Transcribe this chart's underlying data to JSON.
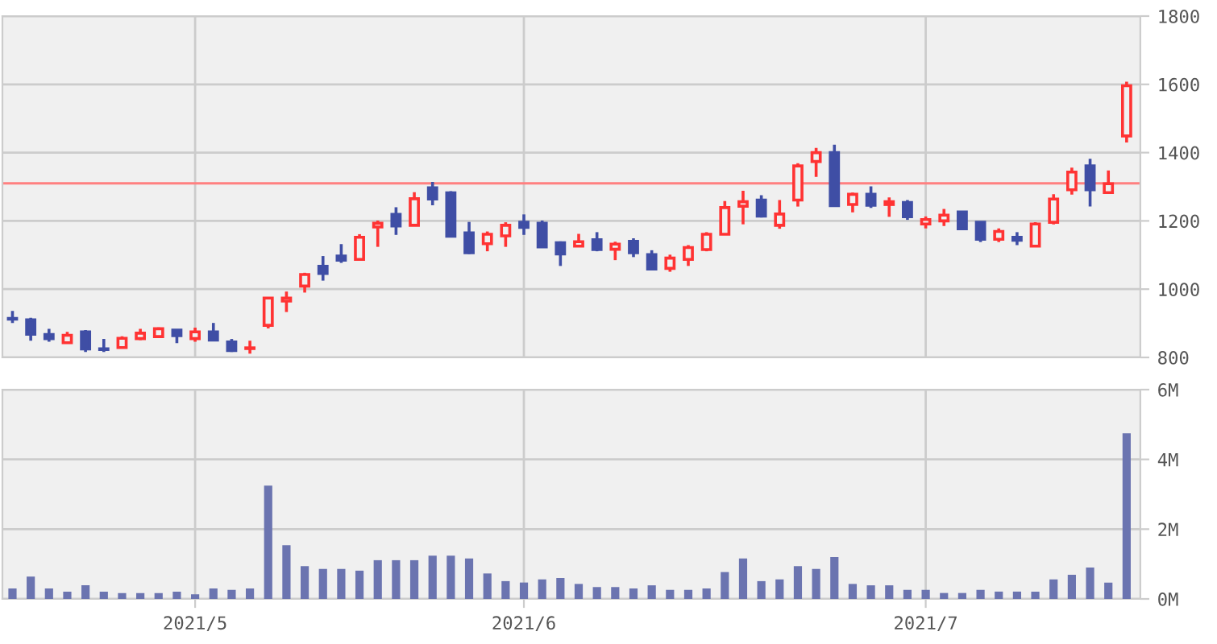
{
  "chart_data": [
    {
      "type": "candlestick",
      "tick_labels": "y",
      "grid": true,
      "categories": [
        null,
        null,
        null,
        null,
        null,
        null,
        null,
        null,
        null,
        null,
        "2021/5",
        null,
        null,
        null,
        null,
        null,
        null,
        null,
        null,
        null,
        null,
        null,
        null,
        null,
        null,
        null,
        null,
        null,
        "2021/6",
        null,
        null,
        null,
        null,
        null,
        null,
        null,
        null,
        null,
        null,
        null,
        null,
        null,
        null,
        null,
        null,
        null,
        null,
        null,
        null,
        null,
        "2021/7",
        null,
        null,
        null,
        null,
        null,
        null,
        null,
        null,
        null,
        null,
        null
      ],
      "ohlc": [
        [
          914,
          936,
          901,
          912
        ],
        [
          910,
          916,
          849,
          868
        ],
        [
          867,
          884,
          846,
          855
        ],
        [
          843,
          875,
          843,
          865
        ],
        [
          875,
          880,
          816,
          825
        ],
        [
          825,
          854,
          816,
          823
        ],
        [
          829,
          862,
          826,
          856
        ],
        [
          855,
          884,
          851,
          871
        ],
        [
          861,
          888,
          859,
          884
        ],
        [
          880,
          880,
          842,
          864
        ],
        [
          855,
          887,
          846,
          875
        ],
        [
          875,
          901,
          851,
          851
        ],
        [
          845,
          854,
          816,
          820
        ],
        [
          826,
          849,
          811,
          828
        ],
        [
          894,
          974,
          885,
          974
        ],
        [
          965,
          993,
          933,
          974
        ],
        [
          1009,
          1048,
          990,
          1043
        ],
        [
          1067,
          1097,
          1025,
          1046
        ],
        [
          1097,
          1132,
          1077,
          1085
        ],
        [
          1087,
          1161,
          1087,
          1152
        ],
        [
          1182,
          1201,
          1124,
          1193
        ],
        [
          1219,
          1240,
          1159,
          1185
        ],
        [
          1187,
          1284,
          1187,
          1265
        ],
        [
          1297,
          1314,
          1246,
          1264
        ],
        [
          1282,
          1287,
          1155,
          1155
        ],
        [
          1165,
          1197,
          1103,
          1107
        ],
        [
          1133,
          1169,
          1111,
          1161
        ],
        [
          1156,
          1196,
          1124,
          1187
        ],
        [
          1196,
          1219,
          1159,
          1181
        ],
        [
          1193,
          1201,
          1124,
          1124
        ],
        [
          1136,
          1140,
          1068,
          1103
        ],
        [
          1126,
          1162,
          1126,
          1139
        ],
        [
          1145,
          1167,
          1111,
          1116
        ],
        [
          1117,
          1139,
          1085,
          1132
        ],
        [
          1140,
          1149,
          1094,
          1107
        ],
        [
          1101,
          1114,
          1059,
          1059
        ],
        [
          1061,
          1101,
          1051,
          1091
        ],
        [
          1087,
          1129,
          1068,
          1122
        ],
        [
          1116,
          1167,
          1111,
          1161
        ],
        [
          1161,
          1258,
          1161,
          1239
        ],
        [
          1243,
          1288,
          1190,
          1256
        ],
        [
          1261,
          1275,
          1210,
          1214
        ],
        [
          1187,
          1261,
          1177,
          1220
        ],
        [
          1261,
          1369,
          1242,
          1361
        ],
        [
          1374,
          1414,
          1329,
          1400
        ],
        [
          1400,
          1423,
          1242,
          1245
        ],
        [
          1248,
          1283,
          1225,
          1278
        ],
        [
          1278,
          1301,
          1238,
          1246
        ],
        [
          1248,
          1269,
          1212,
          1256
        ],
        [
          1254,
          1261,
          1203,
          1212
        ],
        [
          1191,
          1213,
          1178,
          1204
        ],
        [
          1200,
          1235,
          1185,
          1217
        ],
        [
          1226,
          1229,
          1177,
          1177
        ],
        [
          1196,
          1196,
          1138,
          1146
        ],
        [
          1146,
          1178,
          1138,
          1169
        ],
        [
          1152,
          1167,
          1129,
          1143
        ],
        [
          1126,
          1196,
          1126,
          1191
        ],
        [
          1196,
          1278,
          1190,
          1264
        ],
        [
          1291,
          1356,
          1277,
          1343
        ],
        [
          1361,
          1382,
          1242,
          1291
        ],
        [
          1283,
          1348,
          1283,
          1309
        ],
        [
          1449,
          1608,
          1430,
          1596
        ]
      ],
      "colors": [
        "#3f4ea5",
        "#3f4ea5",
        "#3f4ea5",
        "#ff3333",
        "#3f4ea5",
        "#3f4ea5",
        "#ff3333",
        "#ff3333",
        "#ff3333",
        "#3f4ea5",
        "#ff3333",
        "#3f4ea5",
        "#3f4ea5",
        "#ff3333",
        "#ff3333",
        "#ff3333",
        "#ff3333",
        "#3f4ea5",
        "#3f4ea5",
        "#ff3333",
        "#ff3333",
        "#3f4ea5",
        "#ff3333",
        "#3f4ea5",
        "#3f4ea5",
        "#3f4ea5",
        "#ff3333",
        "#ff3333",
        "#3f4ea5",
        "#3f4ea5",
        "#3f4ea5",
        "#ff3333",
        "#3f4ea5",
        "#ff3333",
        "#3f4ea5",
        "#3f4ea5",
        "#ff3333",
        "#ff3333",
        "#ff3333",
        "#ff3333",
        "#ff3333",
        "#3f4ea5",
        "#ff3333",
        "#ff3333",
        "#ff3333",
        "#3f4ea5",
        "#ff3333",
        "#3f4ea5",
        "#ff3333",
        "#3f4ea5",
        "#ff3333",
        "#ff3333",
        "#3f4ea5",
        "#3f4ea5",
        "#ff3333",
        "#3f4ea5",
        "#ff3333",
        "#ff3333",
        "#ff3333",
        "#3f4ea5",
        "#ff3333",
        "#ff3333"
      ],
      "ylim": [
        800,
        1800
      ],
      "yticks": [
        800,
        1000,
        1200,
        1400,
        1600,
        1800
      ],
      "ref_lines": [
        {
          "axis": "y",
          "value": 1310,
          "color": "#ff8080"
        }
      ]
    },
    {
      "type": "bar",
      "grid": true,
      "color": "#6b74b0",
      "categories": [
        null,
        null,
        null,
        null,
        null,
        null,
        null,
        null,
        null,
        null,
        "2021/5",
        null,
        null,
        null,
        null,
        null,
        null,
        null,
        null,
        null,
        null,
        null,
        null,
        null,
        null,
        null,
        null,
        null,
        "2021/6",
        null,
        null,
        null,
        null,
        null,
        null,
        null,
        null,
        null,
        null,
        null,
        null,
        null,
        null,
        null,
        null,
        null,
        null,
        null,
        null,
        null,
        "2021/7",
        null,
        null,
        null,
        null,
        null,
        null,
        null,
        null,
        null,
        null,
        null
      ],
      "values": [
        0.3,
        0.64,
        0.3,
        0.21,
        0.39,
        0.21,
        0.17,
        0.17,
        0.17,
        0.21,
        0.13,
        0.3,
        0.26,
        0.3,
        3.25,
        1.54,
        0.94,
        0.86,
        0.86,
        0.81,
        1.11,
        1.11,
        1.11,
        1.24,
        1.24,
        1.16,
        0.73,
        0.51,
        0.47,
        0.56,
        0.6,
        0.43,
        0.34,
        0.34,
        0.3,
        0.39,
        0.26,
        0.26,
        0.3,
        0.77,
        1.16,
        0.51,
        0.56,
        0.94,
        0.86,
        1.2,
        0.43,
        0.39,
        0.39,
        0.26,
        0.26,
        0.17,
        0.17,
        0.26,
        0.21,
        0.21,
        0.21,
        0.56,
        0.69,
        0.9,
        0.47,
        4.75
      ],
      "ylim": [
        0,
        6
      ],
      "yticks": [
        {
          "value": 0,
          "label": "0M"
        },
        {
          "value": 2,
          "label": "2M"
        },
        {
          "value": 4,
          "label": "4M"
        },
        {
          "value": 6,
          "label": "6M"
        }
      ]
    }
  ]
}
